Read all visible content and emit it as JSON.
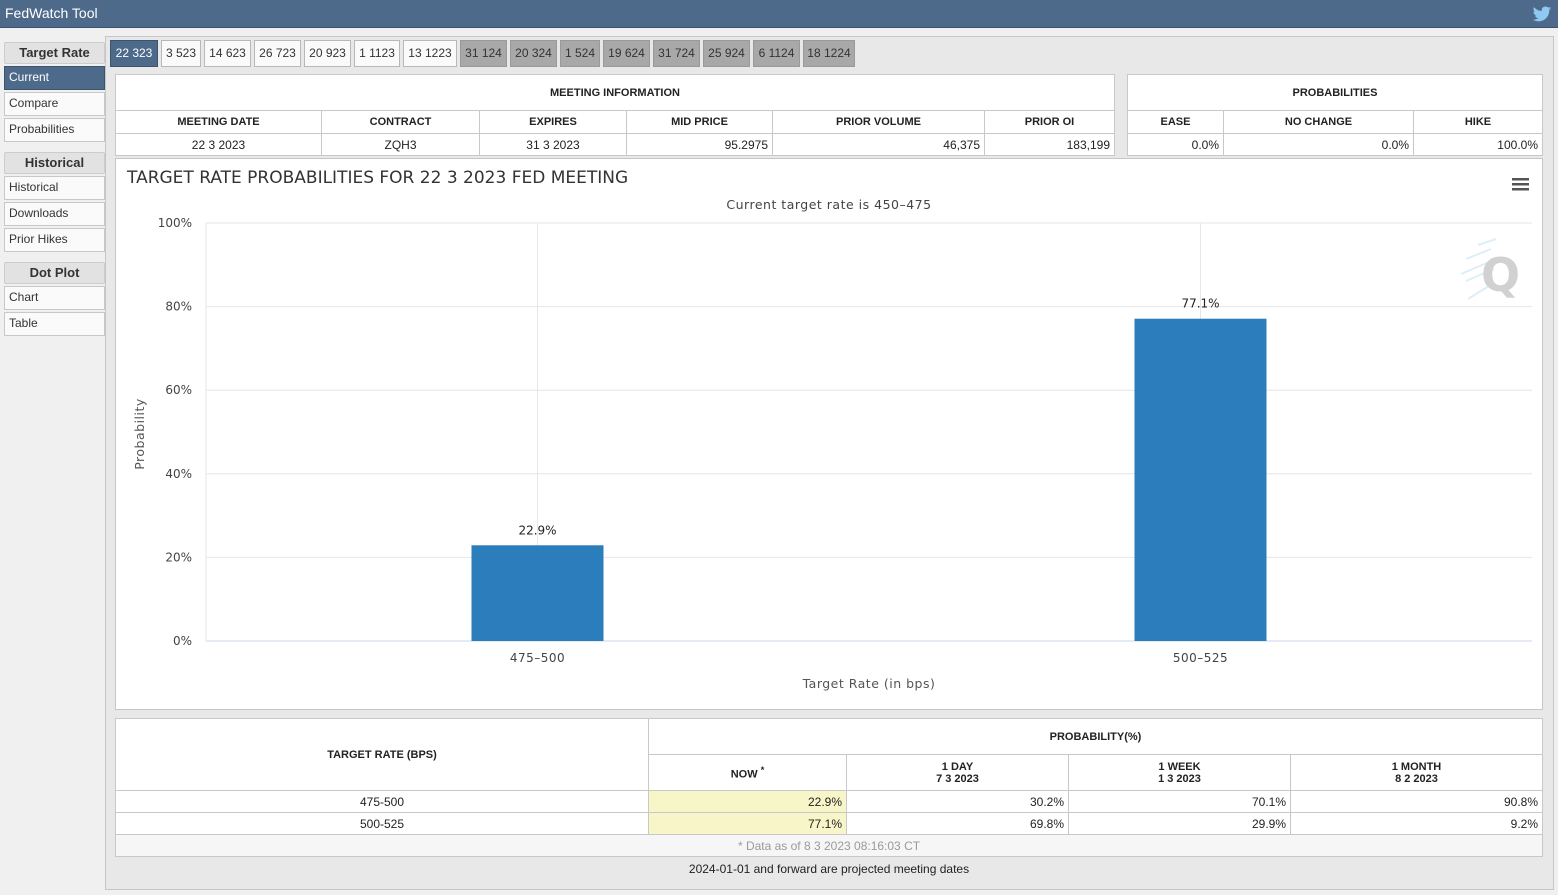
{
  "app": {
    "title": "FedWatch Tool"
  },
  "sidebar": {
    "groups": [
      {
        "label": "Target Rate",
        "items": [
          "Current",
          "Compare",
          "Probabilities"
        ]
      },
      {
        "label": "Historical",
        "items": [
          "Historical",
          "Downloads",
          "Prior Hikes"
        ]
      },
      {
        "label": "Dot Plot",
        "items": [
          "Chart",
          "Table"
        ]
      }
    ],
    "active_item": "Current"
  },
  "tabs": [
    "22 323",
    "3 523",
    "14 623",
    "26 723",
    "20 923",
    "1 1123",
    "13 1223",
    "31 124",
    "20 324",
    "1 524",
    "19 624",
    "31 724",
    "25 924",
    "6 1124",
    "18 1224"
  ],
  "active_tab": "22 323",
  "meeting_info": {
    "header": "MEETING INFORMATION",
    "columns": [
      "MEETING DATE",
      "CONTRACT",
      "EXPIRES",
      "MID PRICE",
      "PRIOR VOLUME",
      "PRIOR OI"
    ],
    "values": [
      "22 3 2023",
      "ZQH3",
      "31 3 2023",
      "95.2975",
      "46,375",
      "183,199"
    ]
  },
  "probabilities": {
    "header": "PROBABILITIES",
    "columns": [
      "EASE",
      "NO CHANGE",
      "HIKE"
    ],
    "values": [
      "0.0%",
      "0.0%",
      "100.0%"
    ]
  },
  "chart_data": {
    "type": "bar",
    "title": "TARGET RATE PROBABILITIES FOR 22 3 2023 FED MEETING",
    "subtitle": "Current target rate is 450–475",
    "xlabel": "Target Rate (in bps)",
    "ylabel": "Probability",
    "categories": [
      "475–500",
      "500–525"
    ],
    "values": [
      22.9,
      77.1
    ],
    "data_labels": [
      "22.9%",
      "77.1%"
    ],
    "ylim": [
      0,
      100
    ],
    "yticks": [
      "0%",
      "20%",
      "40%",
      "60%",
      "80%",
      "100%"
    ],
    "grid": true,
    "bar_color": "#2b7dbb"
  },
  "prob_table": {
    "target_header": "TARGET RATE (BPS)",
    "prob_header": "PROBABILITY(%)",
    "columns": [
      {
        "label": "NOW",
        "sup": "*",
        "date": ""
      },
      {
        "label": "1 DAY",
        "date": "7 3 2023"
      },
      {
        "label": "1 WEEK",
        "date": "1 3 2023"
      },
      {
        "label": "1 MONTH",
        "date": "8 2 2023"
      }
    ],
    "rows": [
      {
        "rate": "475-500",
        "now": "22.9%",
        "day": "30.2%",
        "week": "70.1%",
        "month": "90.8%"
      },
      {
        "rate": "500-525",
        "now": "77.1%",
        "day": "69.8%",
        "week": "29.9%",
        "month": "9.2%"
      }
    ],
    "footnote": "* Data as of 8 3 2023 08:16:03 CT"
  },
  "bottom_note": "2024-01-01 and forward are projected meeting dates"
}
